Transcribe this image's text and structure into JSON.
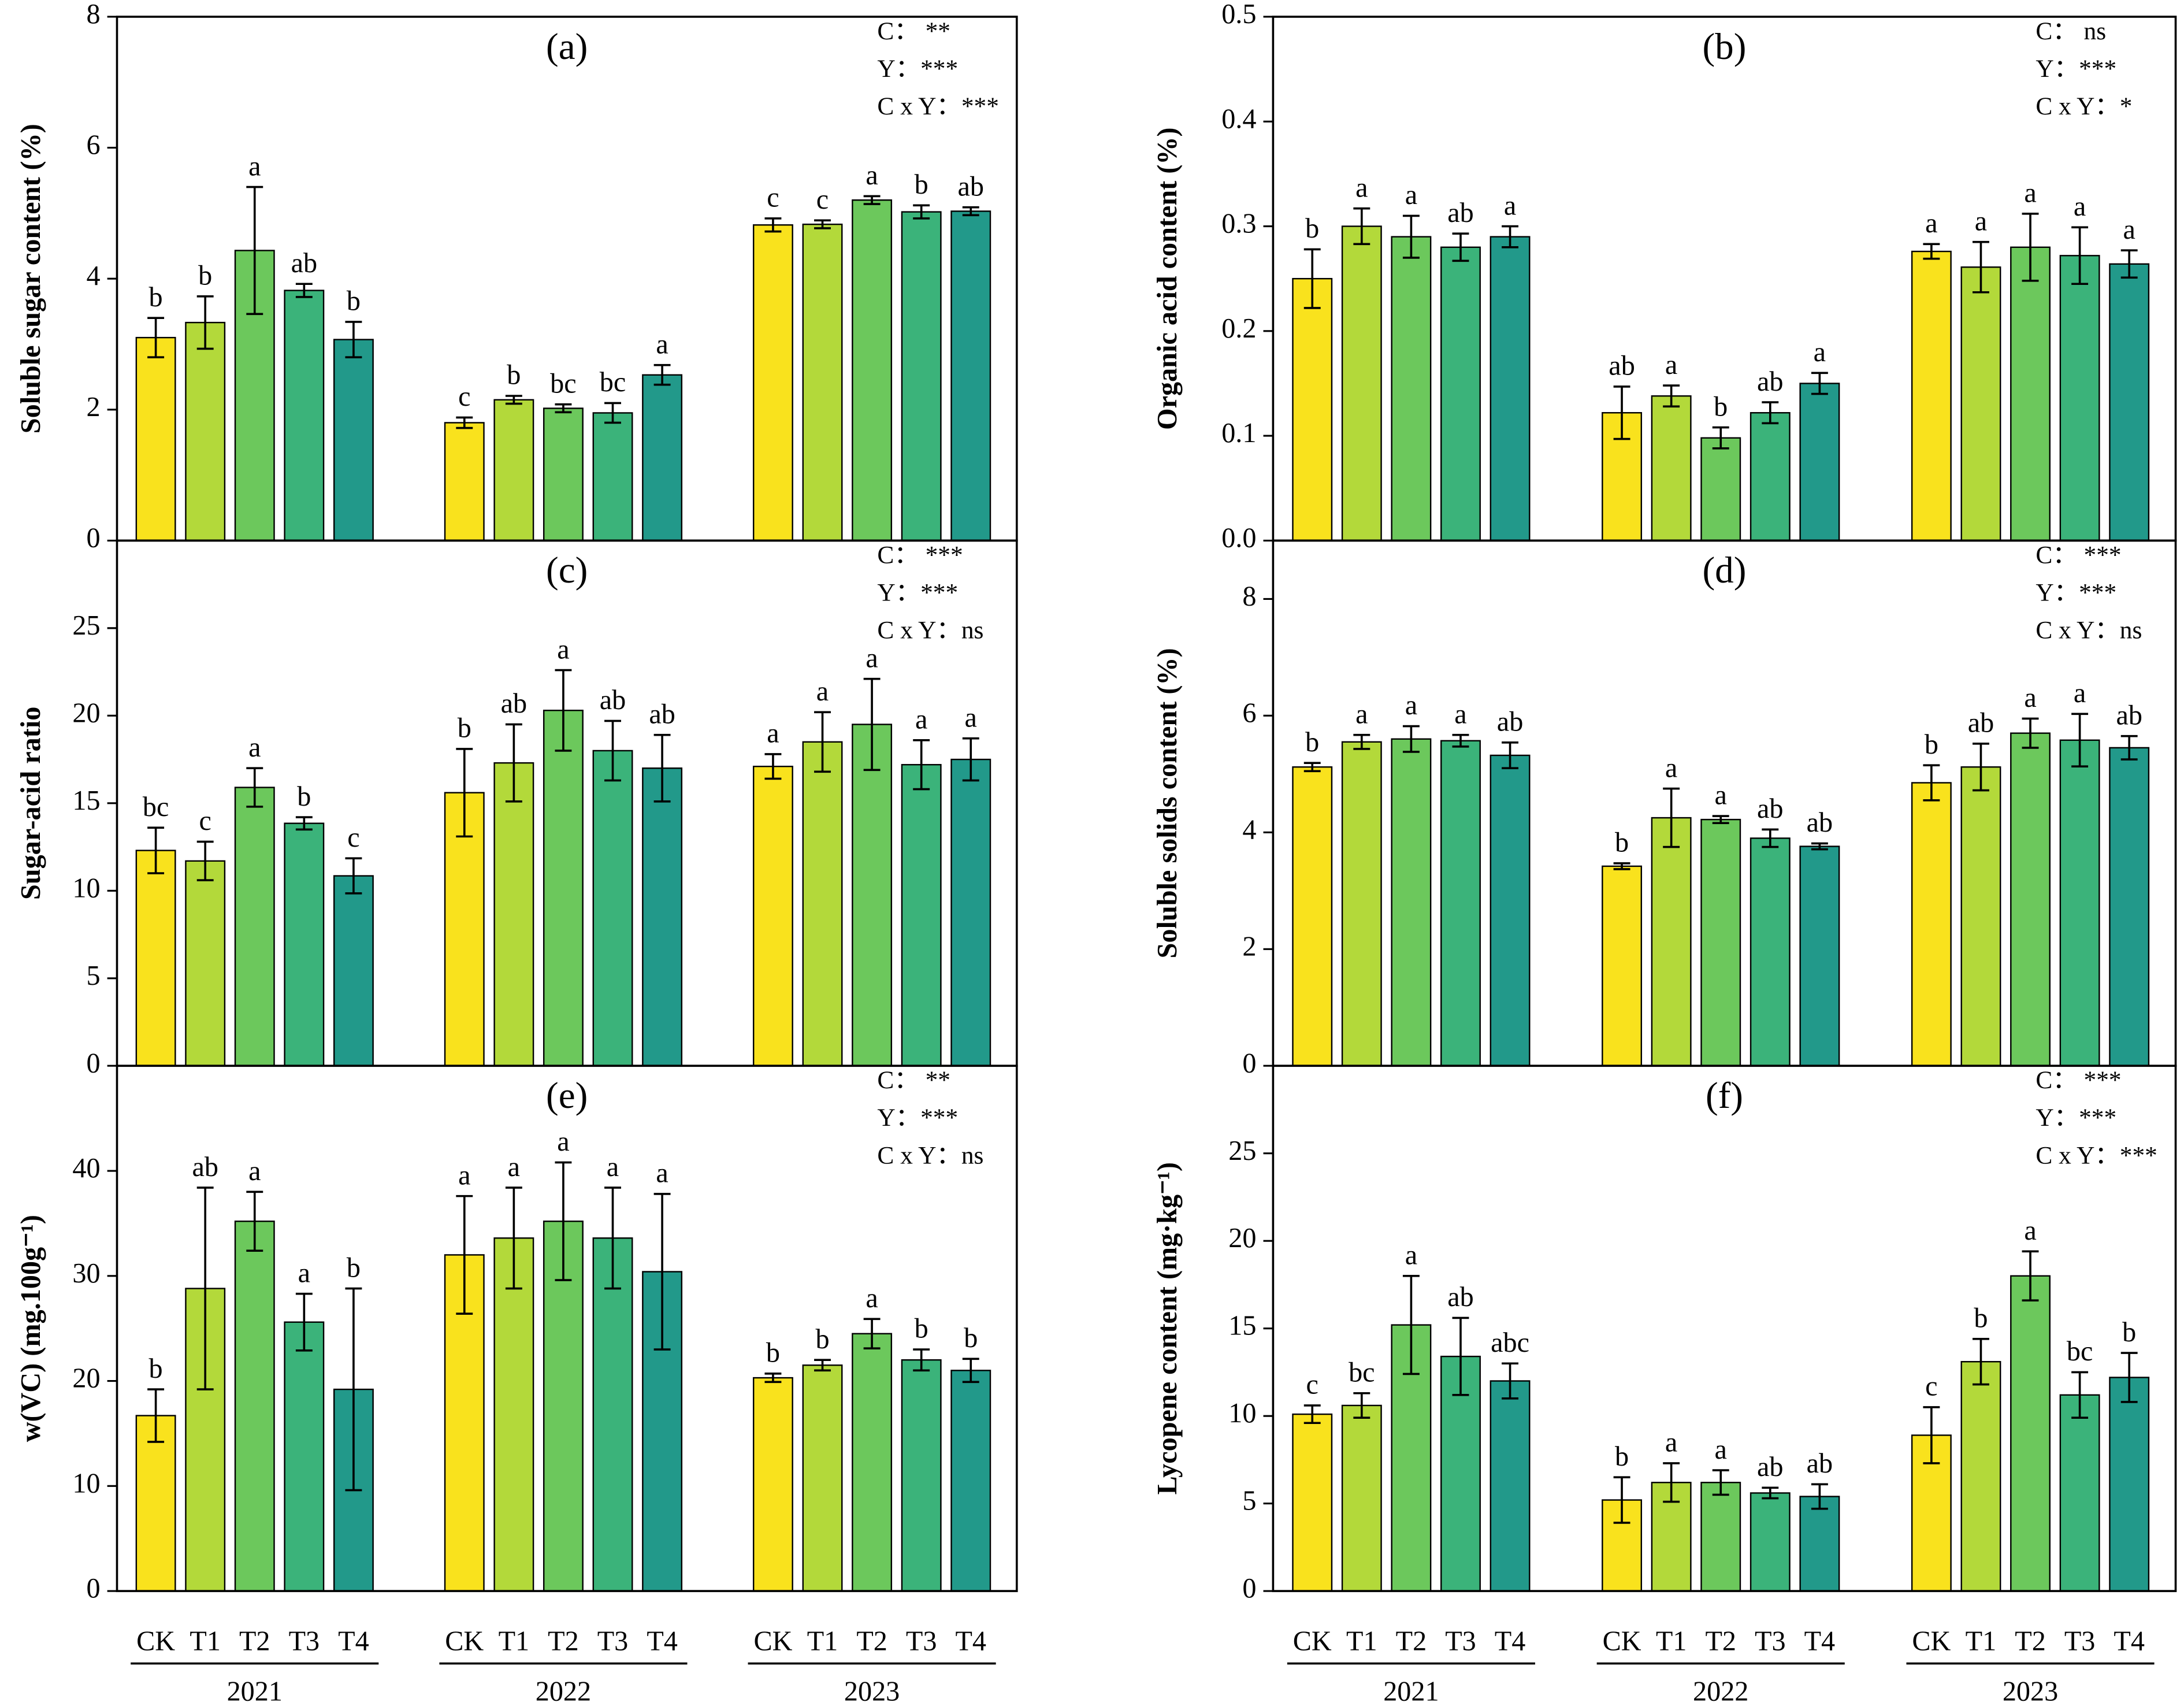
{
  "chart_data": [
    {
      "type": "bar",
      "title": "(a)",
      "ylabel": "Soluble sugar content (%)",
      "ylim": [
        0,
        8
      ],
      "yticks": [
        0,
        2,
        4,
        6,
        8
      ],
      "annotations": [
        "C：  **",
        "Y：***",
        "C x Y：***"
      ],
      "series": [
        {
          "color": "#f9e21d",
          "values": [
            3.1,
            1.8,
            4.82
          ],
          "errors": [
            0.3,
            0.08,
            0.1
          ],
          "letters": [
            "b",
            "c",
            "c"
          ]
        },
        {
          "color": "#b3d93a",
          "values": [
            3.33,
            2.15,
            4.83
          ],
          "errors": [
            0.4,
            0.06,
            0.06
          ],
          "letters": [
            "b",
            "b",
            "c"
          ]
        },
        {
          "color": "#6cc85c",
          "values": [
            4.43,
            2.02,
            5.2
          ],
          "errors": [
            0.97,
            0.06,
            0.06
          ],
          "letters": [
            "a",
            "bc",
            "a"
          ]
        },
        {
          "color": "#3bb37a",
          "values": [
            3.82,
            1.95,
            5.02
          ],
          "errors": [
            0.1,
            0.15,
            0.1
          ],
          "letters": [
            "ab",
            "bc",
            "b"
          ]
        },
        {
          "color": "#22998a",
          "values": [
            3.07,
            2.53,
            5.03
          ],
          "errors": [
            0.27,
            0.15,
            0.06
          ],
          "letters": [
            "b",
            "a",
            "ab"
          ]
        }
      ]
    },
    {
      "type": "bar",
      "title": "(b)",
      "ylabel": "Organic acid content (%)",
      "ylim": [
        0,
        0.5
      ],
      "yticks": [
        {
          "value": 0,
          "label": "0.0"
        },
        0.1,
        0.2,
        0.3,
        0.4,
        0.5
      ],
      "annotations": [
        "C：  ns",
        "Y：***",
        "C x Y：*"
      ],
      "series": [
        {
          "color": "#f9e21d",
          "values": [
            0.25,
            0.122,
            0.276
          ],
          "errors": [
            0.028,
            0.025,
            0.007
          ],
          "letters": [
            "b",
            "ab",
            "a"
          ]
        },
        {
          "color": "#b3d93a",
          "values": [
            0.3,
            0.138,
            0.261
          ],
          "errors": [
            0.017,
            0.01,
            0.024
          ],
          "letters": [
            "a",
            "a",
            "a"
          ]
        },
        {
          "color": "#6cc85c",
          "values": [
            0.29,
            0.098,
            0.28
          ],
          "errors": [
            0.02,
            0.01,
            0.032
          ],
          "letters": [
            "a",
            "b",
            "a"
          ]
        },
        {
          "color": "#3bb37a",
          "values": [
            0.28,
            0.122,
            0.272
          ],
          "errors": [
            0.013,
            0.01,
            0.027
          ],
          "letters": [
            "ab",
            "ab",
            "a"
          ]
        },
        {
          "color": "#22998a",
          "values": [
            0.29,
            0.15,
            0.264
          ],
          "errors": [
            0.01,
            0.01,
            0.013
          ],
          "letters": [
            "a",
            "a",
            "a"
          ]
        }
      ]
    },
    {
      "type": "bar",
      "title": "(c)",
      "ylabel": "Sugar-acid ratio",
      "ylim": [
        0,
        30
      ],
      "yticks": [
        0,
        5,
        10,
        15,
        20,
        25
      ],
      "annotations": [
        "C：  ***",
        "Y：***",
        "C x Y：ns"
      ],
      "series": [
        {
          "color": "#f9e21d",
          "values": [
            12.3,
            15.6,
            17.1
          ],
          "errors": [
            1.3,
            2.5,
            0.7
          ],
          "letters": [
            "bc",
            "b",
            "a"
          ]
        },
        {
          "color": "#b3d93a",
          "values": [
            11.7,
            17.3,
            18.5
          ],
          "errors": [
            1.1,
            2.2,
            1.7
          ],
          "letters": [
            "c",
            "ab",
            "a"
          ]
        },
        {
          "color": "#6cc85c",
          "values": [
            15.9,
            20.3,
            19.5
          ],
          "errors": [
            1.1,
            2.3,
            2.6
          ],
          "letters": [
            "a",
            "a",
            "a"
          ]
        },
        {
          "color": "#3bb37a",
          "values": [
            13.85,
            18.0,
            17.2
          ],
          "errors": [
            0.35,
            1.7,
            1.4
          ],
          "letters": [
            "b",
            "ab",
            "a"
          ]
        },
        {
          "color": "#22998a",
          "values": [
            10.85,
            17.0,
            17.5
          ],
          "errors": [
            1.0,
            1.9,
            1.2
          ],
          "letters": [
            "c",
            "ab",
            "a"
          ]
        }
      ]
    },
    {
      "type": "bar",
      "title": "(d)",
      "ylabel": "Soluble solids content (%)",
      "ylim": [
        0,
        9
      ],
      "yticks": [
        0,
        2,
        4,
        6,
        8
      ],
      "annotations": [
        "C：  ***",
        "Y：***",
        "C x Y：ns"
      ],
      "series": [
        {
          "color": "#f9e21d",
          "values": [
            5.12,
            3.42,
            4.85
          ],
          "errors": [
            0.07,
            0.05,
            0.3
          ],
          "letters": [
            "b",
            "b",
            "b"
          ]
        },
        {
          "color": "#b3d93a",
          "values": [
            5.55,
            4.25,
            5.12
          ],
          "errors": [
            0.12,
            0.5,
            0.4
          ],
          "letters": [
            "a",
            "a",
            "ab"
          ]
        },
        {
          "color": "#6cc85c",
          "values": [
            5.6,
            4.22,
            5.7
          ],
          "errors": [
            0.22,
            0.06,
            0.25
          ],
          "letters": [
            "a",
            "a",
            "a"
          ]
        },
        {
          "color": "#3bb37a",
          "values": [
            5.57,
            3.9,
            5.58
          ],
          "errors": [
            0.1,
            0.15,
            0.45
          ],
          "letters": [
            "a",
            "ab",
            "a"
          ]
        },
        {
          "color": "#22998a",
          "values": [
            5.32,
            3.76,
            5.45
          ],
          "errors": [
            0.22,
            0.05,
            0.2
          ],
          "letters": [
            "ab",
            "ab",
            "ab"
          ]
        }
      ]
    },
    {
      "type": "bar",
      "title": "(e)",
      "ylabel": "w(VC) (mg.100g⁻¹)",
      "ylim": [
        0,
        50
      ],
      "yticks": [
        0,
        10,
        20,
        30,
        40
      ],
      "annotations": [
        "C：  **",
        "Y：***",
        "C x Y：ns"
      ],
      "categories": [
        "2021",
        "2022",
        "2023"
      ],
      "series": [
        {
          "name": "CK",
          "color": "#f9e21d",
          "values": [
            16.7,
            32.0,
            20.3
          ],
          "errors": [
            2.5,
            5.6,
            0.4
          ],
          "letters": [
            "b",
            "a",
            "b"
          ]
        },
        {
          "name": "T1",
          "color": "#b3d93a",
          "values": [
            28.8,
            33.6,
            21.5
          ],
          "errors": [
            9.6,
            4.8,
            0.5
          ],
          "letters": [
            "ab",
            "a",
            "b"
          ]
        },
        {
          "name": "T2",
          "color": "#6cc85c",
          "values": [
            35.2,
            35.2,
            24.5
          ],
          "errors": [
            2.8,
            5.6,
            1.4
          ],
          "letters": [
            "a",
            "a",
            "a"
          ]
        },
        {
          "name": "T3",
          "color": "#3bb37a",
          "values": [
            25.6,
            33.6,
            22.0
          ],
          "errors": [
            2.7,
            4.8,
            1.0
          ],
          "letters": [
            "a",
            "a",
            "b"
          ]
        },
        {
          "name": "T4",
          "color": "#22998a",
          "values": [
            19.2,
            30.4,
            21.0
          ],
          "errors": [
            9.6,
            7.4,
            1.1
          ],
          "letters": [
            "b",
            "a",
            "b"
          ]
        }
      ]
    },
    {
      "type": "bar",
      "title": "(f)",
      "ylabel": "Lycopene content (mg·kg⁻¹)",
      "ylim": [
        0,
        30
      ],
      "yticks": [
        0,
        5,
        10,
        15,
        20,
        25
      ],
      "annotations": [
        "C：  ***",
        "Y：***",
        "C x Y：***"
      ],
      "categories": [
        "2021",
        "2022",
        "2023"
      ],
      "series": [
        {
          "name": "CK",
          "color": "#f9e21d",
          "values": [
            10.1,
            5.2,
            8.9
          ],
          "errors": [
            0.5,
            1.3,
            1.6
          ],
          "letters": [
            "c",
            "b",
            "c"
          ]
        },
        {
          "name": "T1",
          "color": "#b3d93a",
          "values": [
            10.6,
            6.2,
            13.1
          ],
          "errors": [
            0.7,
            1.1,
            1.3
          ],
          "letters": [
            "bc",
            "a",
            "b"
          ]
        },
        {
          "name": "T2",
          "color": "#6cc85c",
          "values": [
            15.2,
            6.2,
            18.0
          ],
          "errors": [
            2.8,
            0.7,
            1.4
          ],
          "letters": [
            "a",
            "a",
            "a"
          ]
        },
        {
          "name": "T3",
          "color": "#3bb37a",
          "values": [
            13.4,
            5.6,
            11.2
          ],
          "errors": [
            2.2,
            0.3,
            1.3
          ],
          "letters": [
            "ab",
            "ab",
            "bc"
          ]
        },
        {
          "name": "T4",
          "color": "#22998a",
          "values": [
            12.0,
            5.4,
            12.2
          ],
          "errors": [
            1.0,
            0.7,
            1.4
          ],
          "letters": [
            "abc",
            "ab",
            "b"
          ]
        }
      ]
    }
  ]
}
